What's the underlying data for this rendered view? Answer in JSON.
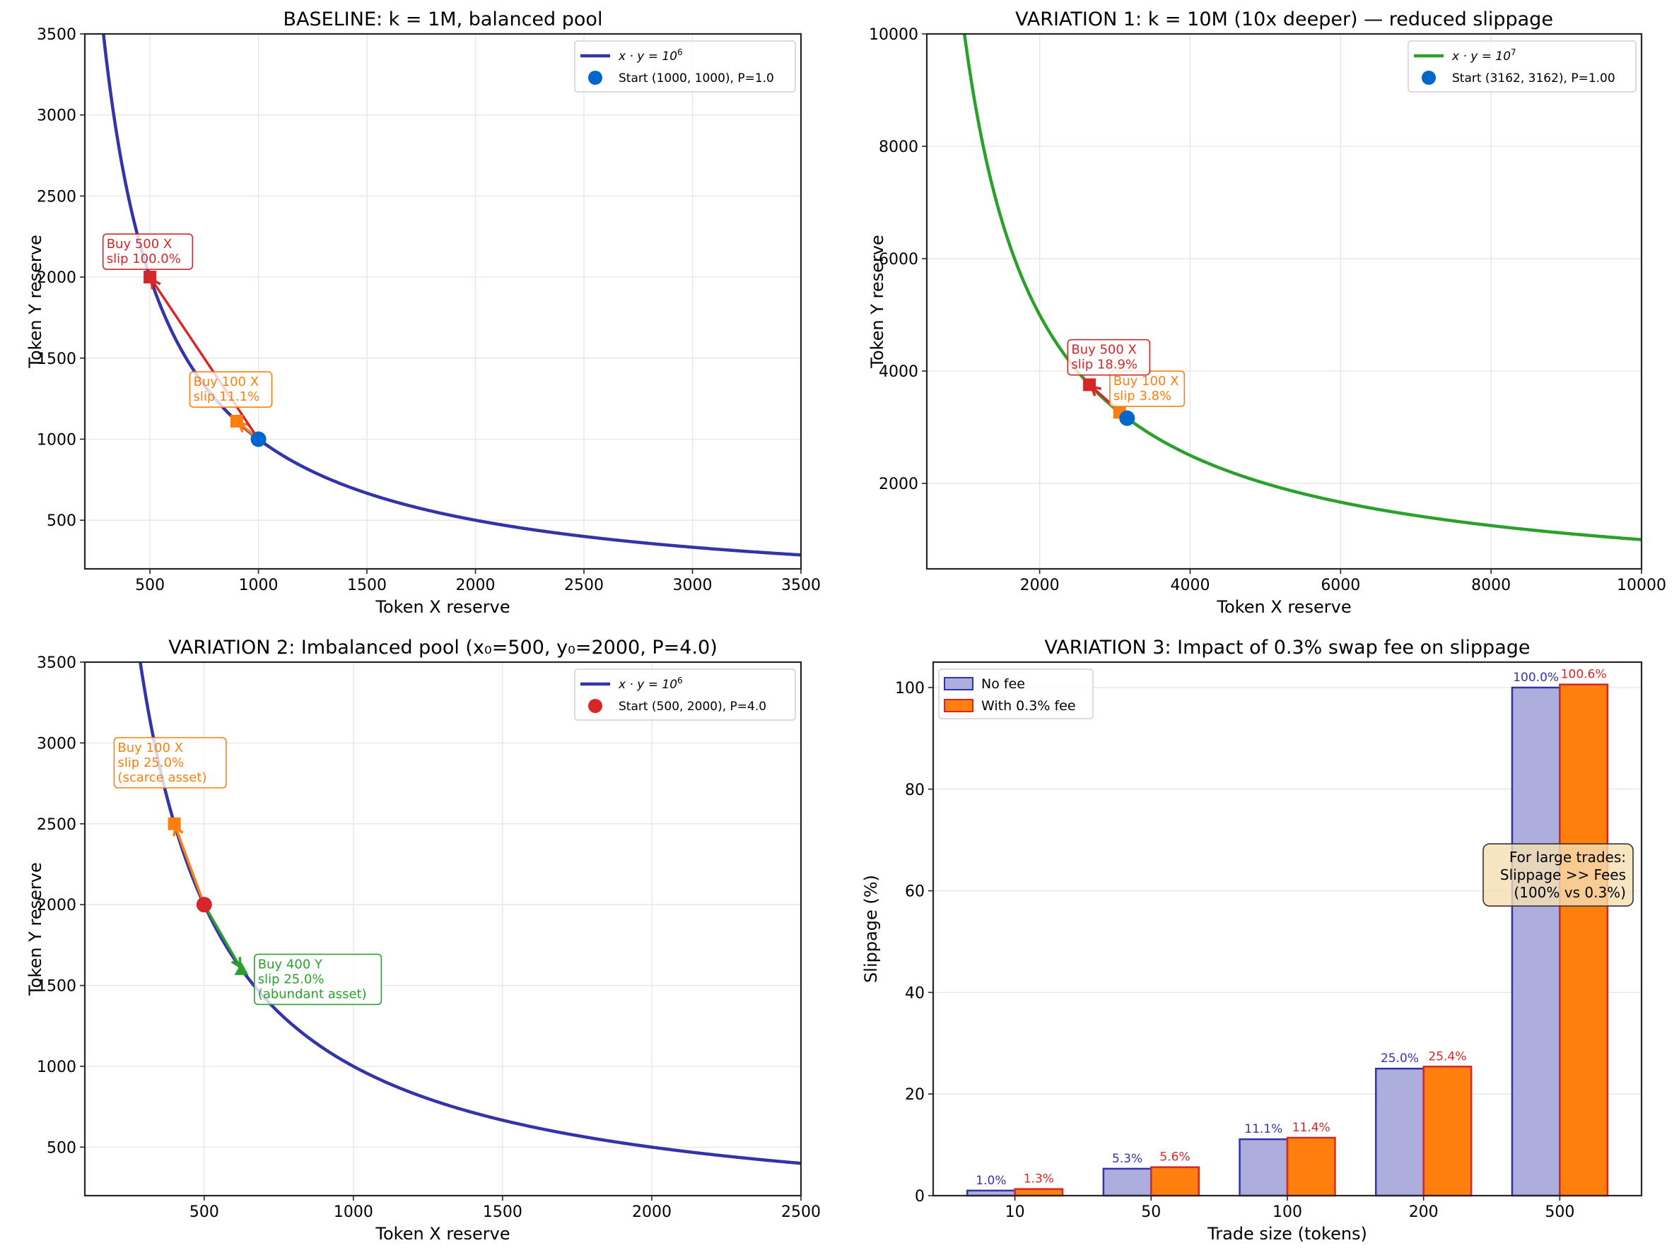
{
  "chart_data": [
    {
      "type": "line",
      "id": "baseline",
      "title": "BASELINE: k = 1M, balanced pool",
      "xlabel": "Token X reserve",
      "ylabel": "Token Y reserve",
      "xlim": [
        200,
        3500
      ],
      "ylim": [
        200,
        3500
      ],
      "xticks": [
        500,
        1000,
        1500,
        2000,
        2500,
        3000,
        3500
      ],
      "yticks": [
        500,
        1000,
        1500,
        2000,
        2500,
        3000,
        3500
      ],
      "grid": true,
      "legend_position": "top-right",
      "curve": {
        "k": 1000000,
        "label_base": "x · y = 10",
        "label_exp": "6",
        "color": "#3333aa"
      },
      "start": {
        "x": 1000,
        "y": 1000,
        "label": "Start (1000, 1000), P=1.0",
        "color": "#0066cc",
        "marker": "circle"
      },
      "trades": [
        {
          "x": 900,
          "y": 1111.1,
          "color": "#ff7f0e",
          "marker": "square",
          "lines": [
            "Buy 100 X",
            "slip 11.1%"
          ],
          "label_at": [
            700,
            1215
          ]
        },
        {
          "x": 500,
          "y": 2000,
          "color": "#d62728",
          "marker": "square",
          "lines": [
            "Buy 500 X",
            "slip 100.0%"
          ],
          "label_at": [
            300,
            2065
          ]
        }
      ]
    },
    {
      "type": "line",
      "id": "variation1",
      "title": "VARIATION 1: k = 10M (10x deeper) — reduced slippage",
      "xlabel": "Token X reserve",
      "ylabel": "Token Y reserve",
      "xlim": [
        500,
        10000
      ],
      "ylim": [
        480,
        10000
      ],
      "xticks": [
        2000,
        4000,
        6000,
        8000,
        10000
      ],
      "yticks": [
        2000,
        4000,
        6000,
        8000,
        10000
      ],
      "grid": true,
      "legend_position": "top-right",
      "curve": {
        "k": 10000000,
        "label_base": "x · y = 10",
        "label_exp": "7",
        "color": "#2ca02c"
      },
      "start": {
        "x": 3162,
        "y": 3162,
        "label": "Start (3162, 3162), P=1.00",
        "color": "#0066cc",
        "marker": "circle"
      },
      "trades": [
        {
          "x": 3062,
          "y": 3265.8,
          "color": "#ff7f0e",
          "marker": "square",
          "lines": [
            "Buy 100 X",
            "slip 3.8%"
          ],
          "label_at": [
            2980,
            3420
          ]
        },
        {
          "x": 2662,
          "y": 3756.6,
          "color": "#d62728",
          "marker": "square",
          "lines": [
            "Buy 500 X",
            "slip 18.9%"
          ],
          "label_at": [
            2420,
            3980
          ]
        }
      ]
    },
    {
      "type": "line",
      "id": "variation2",
      "title": "VARIATION 2: Imbalanced pool (x₀=500, y₀=2000, P=4.0)",
      "xlabel": "Token X reserve",
      "ylabel": "Token Y reserve",
      "xlim": [
        100,
        2500
      ],
      "ylim": [
        200,
        3500
      ],
      "xticks": [
        500,
        1000,
        1500,
        2000,
        2500
      ],
      "yticks": [
        500,
        1000,
        1500,
        2000,
        2500,
        3000,
        3500
      ],
      "grid": true,
      "legend_position": "top-right",
      "curve": {
        "k": 1000000,
        "label_base": "x · y = 10",
        "label_exp": "6",
        "color": "#3333aa"
      },
      "start": {
        "x": 500,
        "y": 2000,
        "label": "Start (500, 2000), P=4.0",
        "color": "#d62728",
        "marker": "circle"
      },
      "trades": [
        {
          "x": 400,
          "y": 2500,
          "color": "#ff7f0e",
          "marker": "square",
          "lines": [
            "Buy 100 X",
            "slip 25.0%",
            "(scarce asset)"
          ],
          "label_at": [
            210,
            2740
          ]
        },
        {
          "x": 625,
          "y": 1600,
          "color": "#2ca02c",
          "marker": "triangle",
          "lines": [
            "Buy 400 Y",
            "slip 25.0%",
            "(abundant asset)"
          ],
          "label_at": [
            680,
            1400
          ]
        }
      ]
    },
    {
      "type": "bar",
      "id": "variation3",
      "title": "VARIATION 3: Impact of 0.3% swap fee on slippage",
      "xlabel": "Trade size (tokens)",
      "ylabel": "Slippage (%)",
      "categories": [
        "10",
        "50",
        "100",
        "200",
        "500"
      ],
      "ylim": [
        0,
        105
      ],
      "yticks": [
        0,
        20,
        40,
        60,
        80,
        100
      ],
      "grid": true,
      "legend_position": "top-left",
      "series": [
        {
          "name": "No fee",
          "values": [
            1.0,
            5.3,
            11.1,
            25.0,
            100.0
          ],
          "labels": [
            "1.0%",
            "5.3%",
            "11.1%",
            "25.0%",
            "100.0%"
          ],
          "fill": "#aeaede",
          "edge": "#3333aa",
          "label_color": "#3333aa"
        },
        {
          "name": "With 0.3% fee",
          "values": [
            1.3,
            5.6,
            11.4,
            25.4,
            100.6
          ],
          "labels": [
            "1.3%",
            "5.6%",
            "11.4%",
            "25.4%",
            "100.6%"
          ],
          "fill": "#ff7f0e",
          "edge": "#d62728",
          "label_color": "#d62728"
        }
      ],
      "annotation": {
        "lines": [
          "For large trades:",
          "Slippage >> Fees",
          "(100% vs 0.3%)"
        ],
        "position": "right-middle"
      }
    }
  ]
}
